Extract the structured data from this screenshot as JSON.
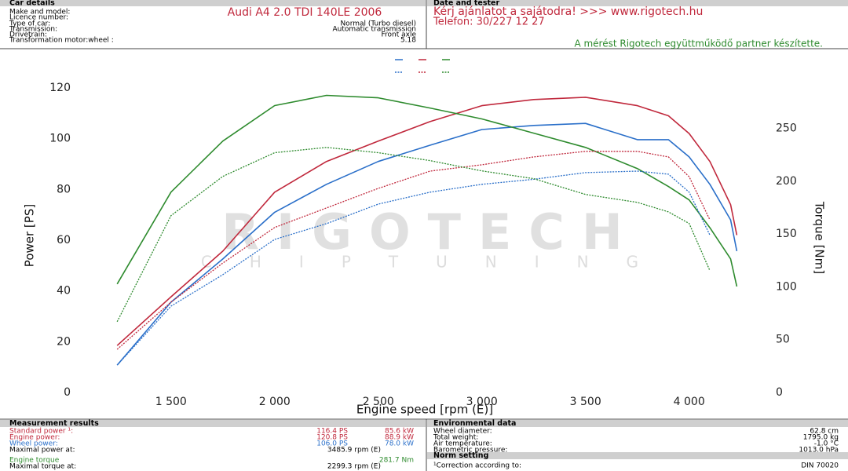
{
  "header": {
    "car_details": {
      "title": "Car details",
      "rows": [
        {
          "label": "Make and model:",
          "value": "Audi A4 2.0 TDI 140LE 2006"
        },
        {
          "label": "Licence number:"
        },
        {
          "label": "Type of car:",
          "value": "Normal (Turbo diesel)"
        },
        {
          "label": "Transmission:",
          "value": "Automatic transmission"
        },
        {
          "label": "Drivetrain:",
          "value": "Front axle"
        },
        {
          "label": "Transformation motor:wheel :",
          "value": "5.18"
        }
      ]
    },
    "date_and_tester": {
      "title": "Date and tester",
      "offer": "Kérj ajánlatot a sajátodra!  >>>  www.rigotech.hu",
      "phone": "Telefon: 30/227 12 27",
      "note": "A mérést Rigotech együttműködő partner készítette."
    }
  },
  "chart_data": {
    "type": "line",
    "xlabel": "Engine speed [rpm (E)]",
    "ylabel": "Power [PS]",
    "y2label": "Torque [Nm]",
    "watermark": {
      "title": "RIGOTECH",
      "subtitle": "CHIPTUNING"
    },
    "x": [
      1240,
      1500,
      1750,
      2000,
      2250,
      2500,
      2750,
      3000,
      3250,
      3500,
      3750,
      3900,
      4000,
      4100,
      4200,
      4230
    ],
    "xlim": [
      1050,
      4380
    ],
    "xticks": [
      {
        "value": 1500,
        "label": "1 500"
      },
      {
        "value": 2000,
        "label": "2 000"
      },
      {
        "value": 2500,
        "label": "2 500"
      },
      {
        "value": 3000,
        "label": "3 000"
      },
      {
        "value": 3500,
        "label": "3 500"
      },
      {
        "value": 4000,
        "label": "4 000"
      }
    ],
    "ylim": [
      0,
      124
    ],
    "yticks": [
      0,
      20,
      40,
      60,
      80,
      100,
      120
    ],
    "y2lim": [
      0,
      298
    ],
    "y2ticks": [
      0,
      50,
      100,
      150,
      200,
      250
    ],
    "grid": false,
    "series": [
      {
        "color": "#2a6fc9",
        "dashed": false,
        "values": [
          10.8,
          35.6,
          52.6,
          71,
          82,
          91,
          97.4,
          103.6,
          105.2,
          106,
          99.6,
          99.6,
          92.8,
          82,
          68,
          55.7
        ]
      },
      {
        "color": "#c0283c",
        "dashed": false,
        "values": [
          18.5,
          37.7,
          55.7,
          78.9,
          91,
          99,
          106.7,
          113,
          115.4,
          116.3,
          113,
          109,
          102,
          91,
          74,
          62
        ]
      },
      {
        "color": "#2e8b2e",
        "dashed": false,
        "axis": "y2",
        "values": [
          102.7,
          189.7,
          238,
          271.6,
          281.3,
          279,
          269.3,
          259,
          245.5,
          232,
          212,
          195,
          182.3,
          156,
          126.5,
          100.4
        ]
      },
      {
        "color": "#2a6fc9",
        "dashed": true,
        "values": [
          10.8,
          34,
          46.4,
          60.3,
          66.5,
          74.2,
          78.9,
          82,
          84,
          86.6,
          87.2,
          86,
          78.9,
          62,
          null,
          null
        ]
      },
      {
        "color": "#c0283c",
        "dashed": true,
        "values": [
          17,
          35.6,
          51,
          65,
          72.7,
          80.4,
          87.2,
          89.7,
          92.8,
          95,
          95,
          92.8,
          85,
          68,
          null,
          null
        ]
      },
      {
        "color": "#2e8b2e",
        "dashed": true,
        "axis": "y2",
        "values": [
          67,
          167.4,
          204.6,
          227,
          232,
          227,
          219.5,
          209.8,
          202.4,
          187.5,
          180,
          171,
          160,
          115.3,
          null,
          null
        ]
      }
    ]
  },
  "footer": {
    "measurement_results": {
      "title": "Measurement results",
      "rows": [
        {
          "label": "Standard power ¹:",
          "ps": "116.4 PS",
          "kw": "85.6 kW",
          "color": "#c0283c"
        },
        {
          "label": "Engine power:",
          "ps": "120.8 PS",
          "kw": "88.9 kW",
          "color": "#c0283c"
        },
        {
          "label": "Wheel power:",
          "ps": "106.0 PS",
          "kw": "78.0 kW",
          "color": "#2a6fc9"
        },
        {
          "label": "Maximal power at:",
          "rpm": "3485.9 rpm (E)",
          "color": "#000000"
        },
        {
          "label": "Engine torque",
          "kw": "281.7 Nm",
          "color": "#2e8b2e"
        },
        {
          "label": "Maximal torque at:",
          "rpm": "2299.3 rpm (E)",
          "color": "#000000"
        }
      ]
    },
    "environmental_data": {
      "title": "Environmental data",
      "rows": [
        {
          "label": "Wheel diameter:",
          "value": "62.8 cm"
        },
        {
          "label": "Total weight:",
          "value": "1795.0 kg"
        },
        {
          "label": "Air temperature:",
          "value": "-1.0 °C"
        },
        {
          "label": "Barometric pressure:",
          "value": "1013.0 hPa"
        }
      ]
    },
    "norm_setting": {
      "title": "Norm setting",
      "label": "¹Correction according to:",
      "value": "DIN 70020"
    }
  }
}
